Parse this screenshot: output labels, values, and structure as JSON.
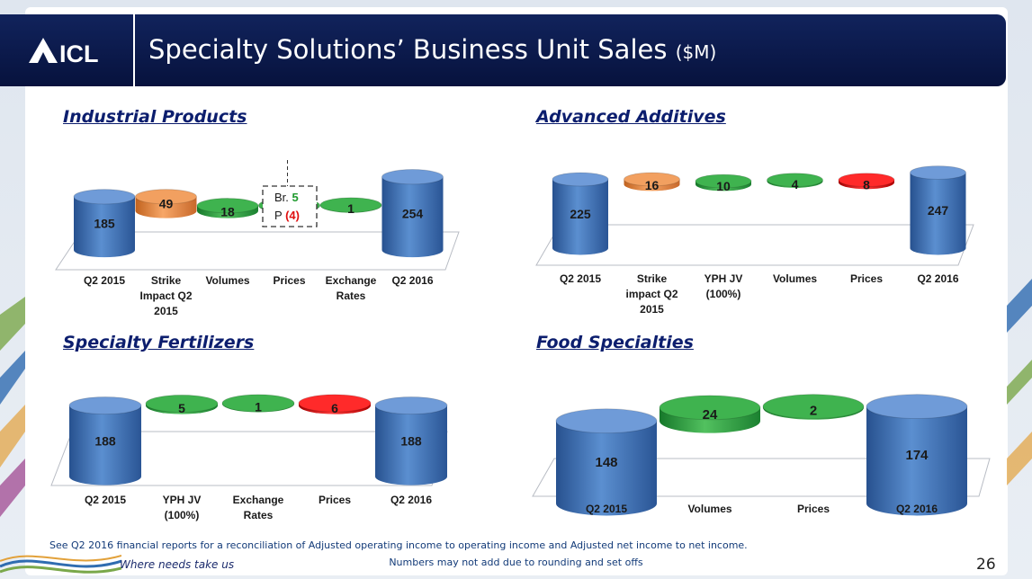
{
  "header": {
    "logo_text": "ICL",
    "title": "Specialty Solutions’ Business Unit Sales",
    "title_unit": "($M)"
  },
  "colors": {
    "base_bar": "#3a6aaf",
    "increase": "#2a9a3c",
    "decrease": "#e00f0f",
    "strike": "#e8863a",
    "header_bg": "#0b1a4d",
    "panel_title": "#0c1e6e"
  },
  "chart_data": [
    {
      "type": "bar",
      "subtype": "waterfall",
      "title": "Industrial Products",
      "categories": [
        "Q2 2015",
        "Strike Impact Q2 2015",
        "Volumes",
        "Prices",
        "Exchange Rates",
        "Q2 2016"
      ],
      "category_lines": [
        [
          "Q2 2015"
        ],
        [
          "Strike",
          "Impact Q2",
          "2015"
        ],
        [
          "Volumes"
        ],
        [
          "Prices"
        ],
        [
          "Exchange",
          "Rates"
        ],
        [
          "Q2 2016"
        ]
      ],
      "values": [
        185,
        49,
        18,
        1,
        1,
        254
      ],
      "kinds": [
        "total",
        "strike",
        "increase",
        "increase",
        "increase",
        "total"
      ],
      "labels": [
        "185",
        "49",
        "18",
        "1",
        "1",
        "254"
      ],
      "annotation": {
        "line1_prefix": "Br. ",
        "line1_value": "5",
        "line2_prefix": "P ",
        "line2_value": "(4)"
      }
    },
    {
      "type": "bar",
      "subtype": "waterfall",
      "title": "Advanced Additives",
      "categories": [
        "Q2 2015",
        "Strike impact Q2 2015",
        "YPH JV (100%)",
        "Volumes",
        "Prices",
        "Q2 2016"
      ],
      "category_lines": [
        [
          "Q2 2015"
        ],
        [
          "Strike",
          "impact Q2",
          "2015"
        ],
        [
          "YPH JV",
          "(100%)"
        ],
        [
          "Volumes"
        ],
        [
          "Prices"
        ],
        [
          "Q2 2016"
        ]
      ],
      "values": [
        225,
        16,
        10,
        4,
        8,
        247
      ],
      "kinds": [
        "total",
        "strike",
        "increase",
        "increase",
        "decrease",
        "total"
      ],
      "labels": [
        "225",
        "16",
        "10",
        "4",
        "8",
        "247"
      ]
    },
    {
      "type": "bar",
      "subtype": "waterfall",
      "title": "Specialty Fertilizers",
      "categories": [
        "Q2 2015",
        "YPH JV (100%)",
        "Exchange Rates",
        "Prices",
        "Q2 2016"
      ],
      "category_lines": [
        [
          "Q2 2015"
        ],
        [
          "YPH JV",
          "(100%)"
        ],
        [
          "Exchange",
          "Rates"
        ],
        [
          "Prices"
        ],
        [
          "Q2 2016"
        ]
      ],
      "values": [
        188,
        5,
        1,
        6,
        188
      ],
      "kinds": [
        "total",
        "increase",
        "increase",
        "decrease",
        "total"
      ],
      "labels": [
        "188",
        "5",
        "1",
        "6",
        "188"
      ]
    },
    {
      "type": "bar",
      "subtype": "waterfall",
      "title": "Food Specialties",
      "categories": [
        "Q2 2015",
        "Volumes",
        "Prices",
        "Q2 2016"
      ],
      "category_lines": [
        [
          "Q2 2015"
        ],
        [
          "Volumes"
        ],
        [
          "Prices"
        ],
        [
          "Q2 2016"
        ]
      ],
      "values": [
        148,
        24,
        2,
        174
      ],
      "kinds": [
        "total",
        "increase",
        "increase",
        "total"
      ],
      "labels": [
        "148",
        "24",
        "2",
        "174"
      ]
    }
  ],
  "footer": {
    "note1": "See Q2 2016 financial reports for a reconciliation of Adjusted operating income to operating income and Adjusted net income to net income.",
    "note2": "Numbers may not add due to rounding and set offs",
    "tagline": "Where needs take us",
    "page_number": "26"
  }
}
